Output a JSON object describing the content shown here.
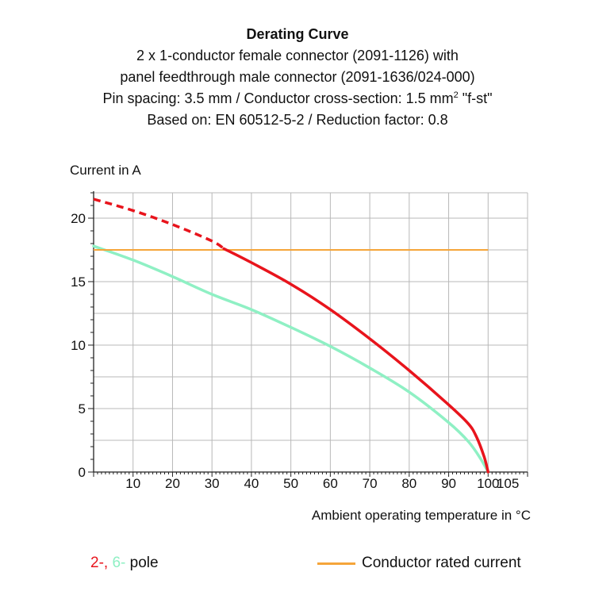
{
  "title": {
    "main": "Derating Curve",
    "line1": "2 x 1-conductor female connector (2091-1126) with",
    "line2": "panel feedthrough male connector (2091-1636/024-000)",
    "line3_pre": "Pin spacing: 3.5 mm / Conductor cross-section: 1.5 mm",
    "line3_sup": "2",
    "line3_post": " \"f-st\"",
    "line4": "Based on: EN 60512-5-2 / Reduction factor: 0.8"
  },
  "legend": {
    "pole_a": "2-,",
    "pole_b": " 6-",
    "pole_label": " pole",
    "rated_label": "Conductor rated current"
  },
  "colors": {
    "pole_2": "#e8141c",
    "pole_6": "#8ff0c4",
    "rated": "#f5a53a",
    "grid": "#b8b8b8"
  },
  "chart_data": {
    "type": "line",
    "xlabel": "Ambient operating temperature in °C",
    "ylabel": "Current in A",
    "xlim": [
      0,
      110
    ],
    "ylim": [
      0,
      22
    ],
    "xticks": [
      10,
      20,
      30,
      40,
      50,
      60,
      70,
      80,
      90,
      100,
      105
    ],
    "yticks": [
      0,
      5,
      10,
      15,
      20
    ],
    "grid": true,
    "series": [
      {
        "name": "2-pole",
        "color": "#e8141c",
        "dashed_until_x": 33,
        "x": [
          0,
          10,
          20,
          30,
          33,
          40,
          50,
          60,
          70,
          80,
          90,
          95,
          97,
          99,
          100
        ],
        "y": [
          21.5,
          20.6,
          19.5,
          18.2,
          17.6,
          16.5,
          14.8,
          12.8,
          10.5,
          8.0,
          5.3,
          3.8,
          2.8,
          1.2,
          0
        ]
      },
      {
        "name": "6-pole",
        "color": "#8ff0c4",
        "x": [
          0,
          10,
          20,
          30,
          40,
          50,
          60,
          70,
          80,
          90,
          95,
          98,
          100
        ],
        "y": [
          17.8,
          16.7,
          15.4,
          14.0,
          12.8,
          11.4,
          9.9,
          8.2,
          6.3,
          3.9,
          2.4,
          1.1,
          0
        ]
      },
      {
        "name": "Conductor rated current",
        "color": "#f5a53a",
        "x": [
          0,
          100
        ],
        "y": [
          17.5,
          17.5
        ]
      }
    ]
  }
}
